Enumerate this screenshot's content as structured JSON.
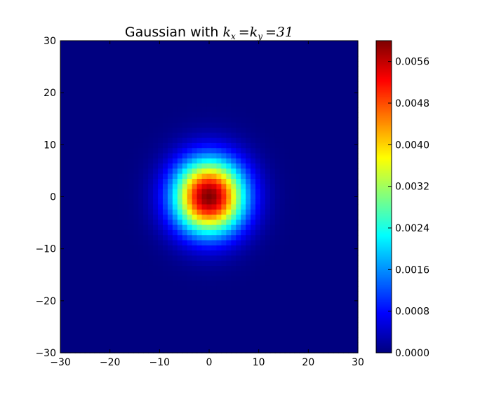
{
  "chart_data": {
    "type": "heatmap",
    "title": "Gaussian with k_x = k_y = 31",
    "title_parts": {
      "prefix": "Gaussian with ",
      "k1": "k",
      "sub1": "x",
      "eq1": "=",
      "k2": "k",
      "sub2": "y",
      "eq2": "=",
      "value": "31"
    },
    "xlabel": "",
    "ylabel": "",
    "grid": false,
    "colormap": "jet",
    "kernel_size": 31,
    "xlim": [
      -30,
      30
    ],
    "ylim": [
      -30,
      30
    ],
    "x_ticks": [
      "−30",
      "−20",
      "−10",
      "0",
      "10",
      "20",
      "30"
    ],
    "y_ticks": [
      "30",
      "20",
      "10",
      "0",
      "−10",
      "−20",
      "−30"
    ],
    "colorbar": {
      "vmin": 0.0,
      "vmax": 0.006,
      "ticks": [
        "0.0056",
        "0.0048",
        "0.0040",
        "0.0032",
        "0.0024",
        "0.0016",
        "0.0008",
        "0.0000"
      ],
      "tick_values": [
        0.0056,
        0.0048,
        0.004,
        0.0032,
        0.0024,
        0.0016,
        0.0008,
        0.0
      ]
    },
    "peak": {
      "x": 0,
      "y": 0,
      "value": 0.006
    },
    "sigma": 5
  }
}
